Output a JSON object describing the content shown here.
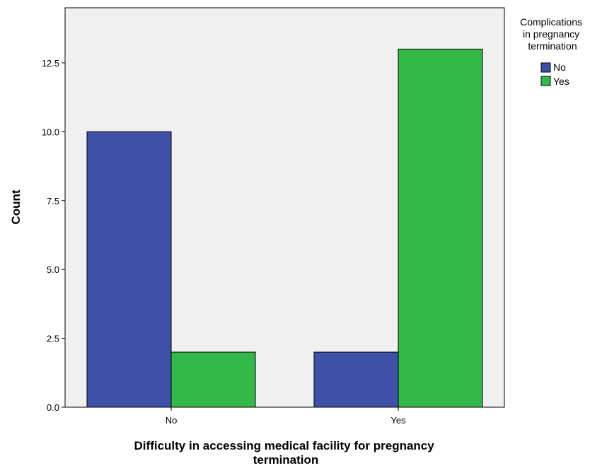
{
  "chart_data": {
    "type": "bar",
    "categories": [
      "No",
      "Yes"
    ],
    "series": [
      {
        "name": "No",
        "values": [
          10,
          2
        ],
        "color": "#3f51a7"
      },
      {
        "name": "Yes",
        "values": [
          2,
          13
        ],
        "color": "#34b84a"
      }
    ],
    "xlabel": [
      "Difficulty in accessing medical facility for pregnancy",
      "termination"
    ],
    "ylabel": "Count",
    "ylim": [
      0,
      14.5
    ],
    "yticks": [
      0,
      2.5,
      5,
      7.5,
      10,
      12.5
    ],
    "ytick_labels": [
      "0.0",
      "2.5",
      "5.0",
      "7.5",
      "10.0",
      "12.5"
    ],
    "legend": {
      "title": [
        "Complications",
        "in pregnancy",
        "termination"
      ],
      "placement": "top-right",
      "entries": [
        "No",
        "Yes"
      ]
    },
    "grid": false,
    "plot_background": "#f0f0f0"
  }
}
